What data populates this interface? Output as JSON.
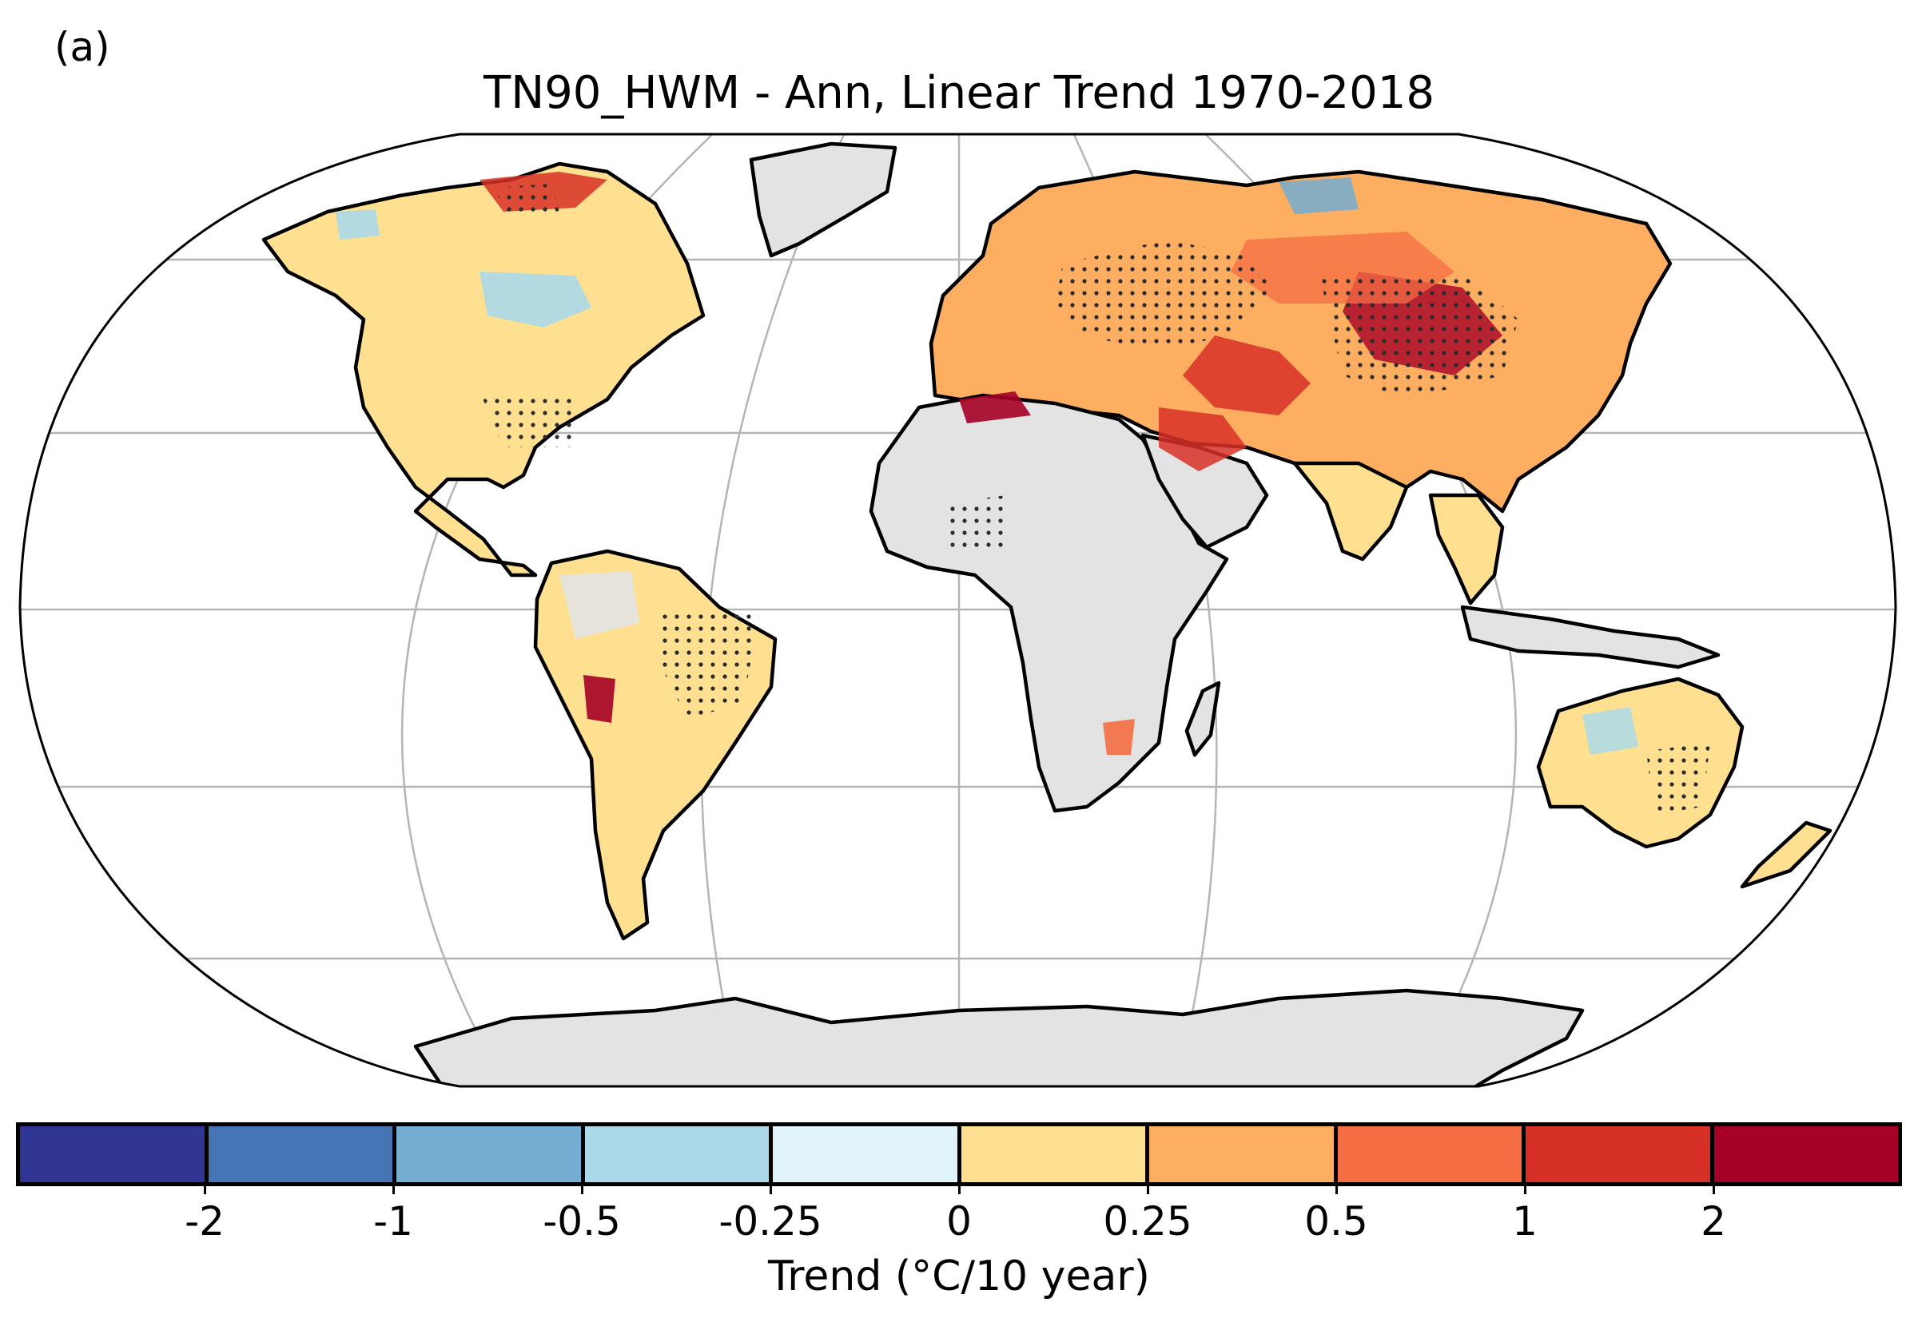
{
  "panel_label": "(a)",
  "title": "TN90_HWM - Ann, Linear Trend 1970-2018",
  "colorbar": {
    "label": "Trend (°C/10 year)",
    "colors": [
      "#313695",
      "#4575b4",
      "#74add1",
      "#abd9e9",
      "#e0f3f8",
      "#fee090",
      "#fdae61",
      "#f46d43",
      "#d73027",
      "#a50026"
    ],
    "tick_labels": [
      "-2",
      "-1",
      "-0.5",
      "-0.25",
      "0",
      "0.25",
      "0.5",
      "1",
      "2"
    ]
  },
  "map": {
    "projection": "Robinson",
    "land_no_data_color": "#e3e3e3",
    "gridline_color": "#b5b5b5",
    "stippling": "significant trend",
    "regions": [
      {
        "name": "North America",
        "fill": "#fee090"
      },
      {
        "name": "Greenland",
        "fill": "#e3e3e3"
      },
      {
        "name": "South America",
        "fill": "#fee090"
      },
      {
        "name": "Eurasia",
        "fill": "#fdae61"
      },
      {
        "name": "Africa",
        "fill": "#e3e3e3"
      },
      {
        "name": "Arabian Peninsula",
        "fill": "#e3e3e3"
      },
      {
        "name": "India",
        "fill": "#fee090"
      },
      {
        "name": "Southeast Asia",
        "fill": "#fee090"
      },
      {
        "name": "Indonesia",
        "fill": "#e3e3e3"
      },
      {
        "name": "Australia",
        "fill": "#fee090"
      },
      {
        "name": "Antarctica",
        "fill": "#e3e3e3"
      }
    ]
  }
}
